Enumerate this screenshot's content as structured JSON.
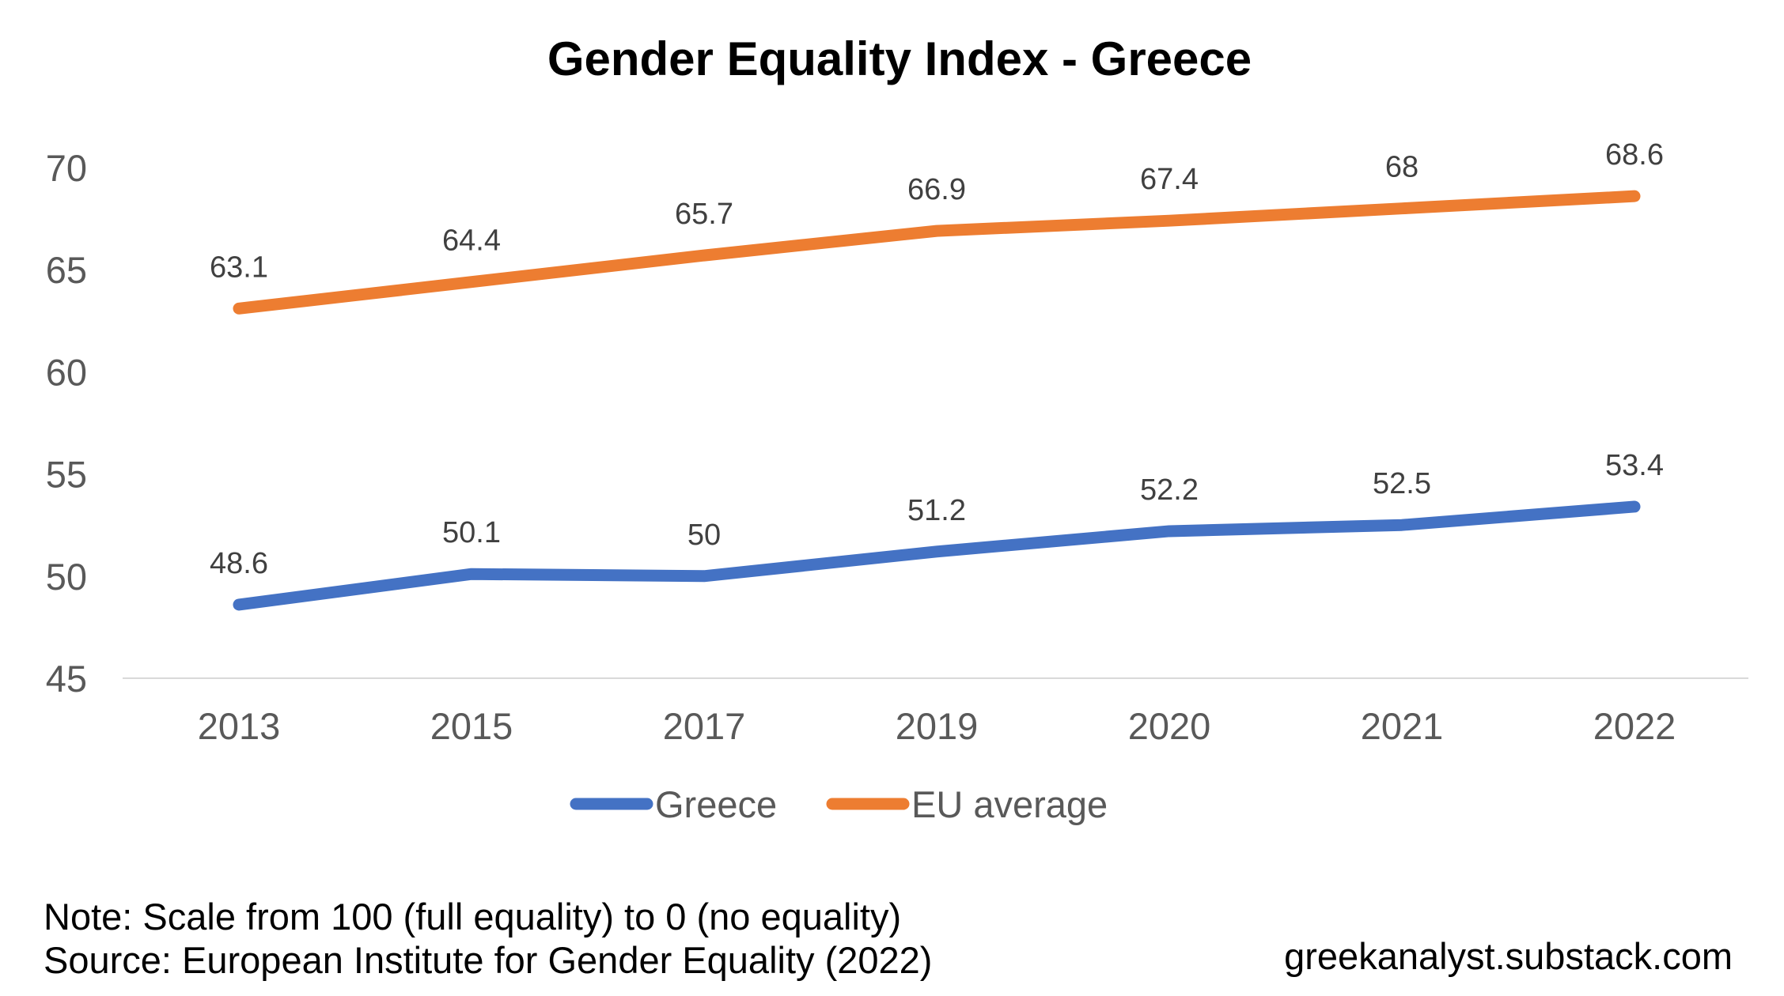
{
  "chart_data": {
    "type": "line",
    "title": "Gender Equality Index - Greece",
    "categories": [
      "2013",
      "2015",
      "2017",
      "2019",
      "2020",
      "2021",
      "2022"
    ],
    "series": [
      {
        "name": "Greece",
        "color": "#4472C4",
        "values": [
          48.6,
          50.1,
          50,
          51.2,
          52.2,
          52.5,
          53.4
        ]
      },
      {
        "name": "EU average",
        "color": "#ED7D31",
        "values": [
          63.1,
          64.4,
          65.7,
          66.9,
          67.4,
          68,
          68.6
        ]
      }
    ],
    "ylim": [
      45,
      70
    ],
    "yticks": [
      45,
      50,
      55,
      60,
      65,
      70
    ],
    "grid": false,
    "legend": "bottom",
    "xlabel": "",
    "ylabel": ""
  },
  "footer": {
    "note": "Note: Scale from 100 (full equality) to 0 (no equality)",
    "source": "Source: European Institute for Gender Equality (2022)",
    "site": "greekanalyst.substack.com"
  }
}
